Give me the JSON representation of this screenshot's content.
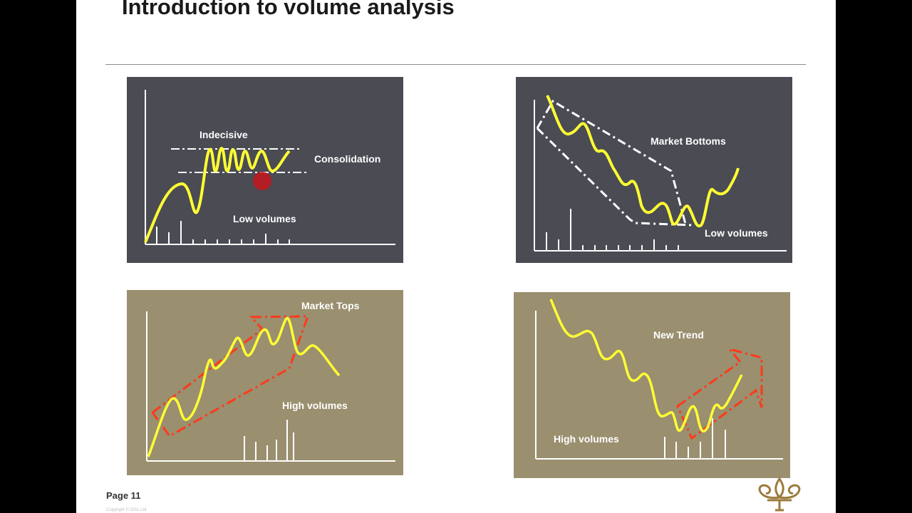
{
  "slide": {
    "title": "Introduction to volume analysis",
    "page_label": "Page 11",
    "copyright": "Copyright © 2011 Ltd"
  },
  "panels": {
    "consolidation": {
      "bg": "#4a4b53",
      "labels": {
        "indecisive": "Indecisive",
        "consolidation": "Consolidation",
        "low_volumes": "Low volumes"
      }
    },
    "market_bottoms": {
      "bg": "#4a4b53",
      "labels": {
        "market_bottoms": "Market Bottoms",
        "low_volumes": "Low volumes"
      }
    },
    "market_tops": {
      "bg": "#9a8f6f",
      "labels": {
        "market_tops": "Market Tops",
        "high_volumes": "High volumes"
      }
    },
    "new_trend": {
      "bg": "#9a8f6f",
      "labels": {
        "new_trend": "New Trend",
        "high_volumes": "High volumes"
      }
    }
  },
  "colors": {
    "price_line": "#ffff33",
    "channel_red": "#ff3a1a",
    "channel_white": "#ffffff",
    "marker": "#c4161c",
    "accent_logo": "#9c7a3c"
  },
  "icons": {
    "logo": "fleur-de-lis-icon"
  }
}
